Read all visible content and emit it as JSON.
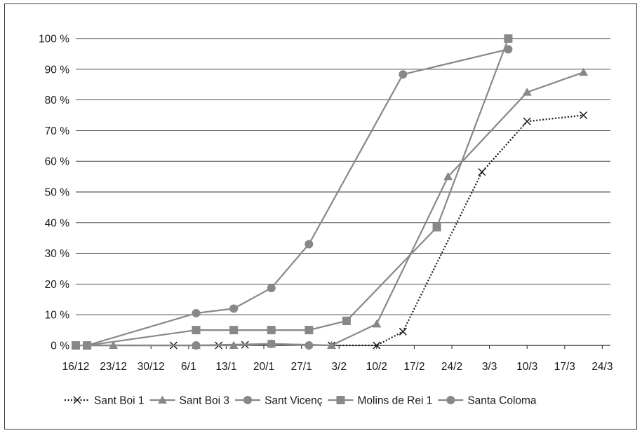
{
  "chart_data": {
    "type": "line",
    "title": "",
    "xlabel": "",
    "ylabel": "",
    "categories": [
      "16/12",
      "23/12",
      "30/12",
      "6/1",
      "13/1",
      "20/1",
      "27/1",
      "3/2",
      "10/2",
      "17/2",
      "24/2",
      "3/3",
      "10/3",
      "17/3",
      "24/3"
    ],
    "y_ticks": [
      "0 %",
      "10 %",
      "20 %",
      "30 %",
      "40 %",
      "50 %",
      "60 %",
      "70 %",
      "80 %",
      "90 %",
      "100 %"
    ],
    "ylim": [
      0,
      100
    ],
    "grid": "horizontal",
    "legend_position": "bottom",
    "series": [
      {
        "name": "Sant Boi 1",
        "color": "#1a1a1a",
        "style": "dotted",
        "marker": "x",
        "points": [
          [
            0.3,
            0
          ],
          [
            2.6,
            0
          ],
          [
            3.8,
            0
          ],
          [
            4.5,
            0.2
          ],
          [
            5.2,
            0.5
          ],
          [
            6.8,
            0
          ],
          [
            8,
            0
          ],
          [
            8.7,
            4.5
          ],
          [
            10.8,
            56.5
          ],
          [
            12,
            73
          ],
          [
            13.5,
            75
          ]
        ]
      },
      {
        "name": "Sant Boi 3",
        "color": "#888888",
        "style": "solid",
        "marker": "triangle",
        "points": [
          [
            0.3,
            0
          ],
          [
            1,
            0
          ],
          [
            3.2,
            0
          ],
          [
            4.2,
            0
          ],
          [
            5.2,
            0.5
          ],
          [
            6.8,
            0
          ],
          [
            8,
            7
          ],
          [
            9.9,
            55
          ],
          [
            12,
            82.5
          ],
          [
            13.5,
            89
          ]
        ]
      },
      {
        "name": "Sant Vicenç",
        "color": "#888888",
        "style": "solid",
        "marker": "circle",
        "points": [
          [
            0.3,
            0
          ],
          [
            3.2,
            0
          ],
          [
            5.2,
            0.5
          ],
          [
            6.2,
            0
          ]
        ]
      },
      {
        "name": "Molins de Rei 1",
        "color": "#888888",
        "style": "solid",
        "marker": "square",
        "points": [
          [
            0,
            0
          ],
          [
            0.3,
            0
          ],
          [
            3.2,
            5
          ],
          [
            4.2,
            5
          ],
          [
            5.2,
            5
          ],
          [
            6.2,
            5
          ],
          [
            7.2,
            8
          ],
          [
            9.6,
            38.5
          ],
          [
            11.5,
            100
          ]
        ]
      },
      {
        "name": "Santa Coloma",
        "color": "#888888",
        "style": "solid",
        "marker": "circle",
        "points": [
          [
            0.3,
            0
          ],
          [
            3.2,
            10.5
          ],
          [
            4.2,
            12
          ],
          [
            5.2,
            18.7
          ],
          [
            6.2,
            33
          ],
          [
            8.7,
            88.3
          ],
          [
            11.5,
            96.5
          ]
        ]
      }
    ]
  }
}
